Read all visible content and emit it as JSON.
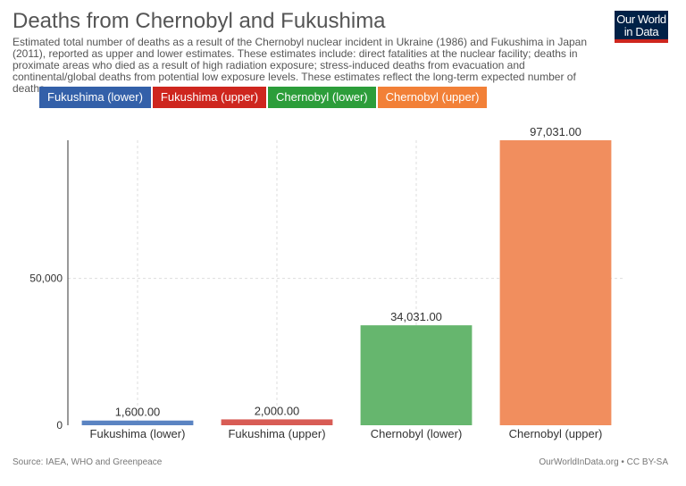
{
  "header": {
    "title": "Deaths from Chernobyl and Fukushima",
    "subtitle": "Estimated total number of deaths as a result of the Chernobyl nuclear incident in Ukraine (1986) and Fukushima in Japan (2011), reported as upper and lower estimates. These estimates include: direct fatalities at the nuclear facility; deaths in proximate areas who died as a result of high radiation exposure; stress-induced deaths from evacuation and continental/global deaths from potential low exposure levels. These estimates reflect the long-term expected number of deaths."
  },
  "logo": {
    "line1": "Our World",
    "line2": "in Data"
  },
  "legend": [
    {
      "label": "Fukushima (lower)",
      "color": "#3360a9"
    },
    {
      "label": "Fukushima (upper)",
      "color": "#ce261e"
    },
    {
      "label": "Chernobyl (lower)",
      "color": "#2c9d3a"
    },
    {
      "label": "Chernobyl (upper)",
      "color": "#f28037"
    }
  ],
  "chart_data": {
    "type": "bar",
    "categories": [
      "Fukushima (lower)",
      "Fukushima (upper)",
      "Chernobyl (lower)",
      "Chernobyl (upper)"
    ],
    "values": [
      1600,
      2000,
      34031,
      97031
    ],
    "value_labels": [
      "1,600.00",
      "2,000.00",
      "34,031.00",
      "97,031.00"
    ],
    "colors": [
      "#5b84c2",
      "#d85c55",
      "#66b66e",
      "#f18e5e"
    ],
    "yticks": [
      0,
      50000
    ],
    "ytick_labels": [
      "0",
      "50,000"
    ],
    "ylim": [
      0,
      97031
    ],
    "grid": true
  },
  "footer": {
    "source": "Source: IAEA, WHO and Greenpeace",
    "credit": "OurWorldInData.org • CC BY-SA"
  }
}
